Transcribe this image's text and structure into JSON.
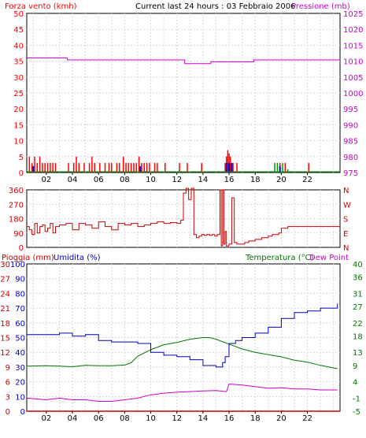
{
  "header": {
    "wind_label": "Forza vento (kmh)",
    "title": "Current last 24 hours : 03 Febbraio 2006",
    "pressure_label": "Pressione (mb)"
  },
  "colors": {
    "wind": "#ff0000",
    "pressure": "#cc00cc",
    "gust": "#0000cc",
    "calm": "#009900",
    "direction": "#cc0000",
    "rain": "#cc0000",
    "humidity": "#0000bb",
    "temperature": "#007700",
    "dewpoint": "#cc00cc"
  },
  "chart_data": [
    {
      "type": "line",
      "name": "wind-pressure",
      "x_ticks": [
        "02",
        "04",
        "06",
        "08",
        "10",
        "12",
        "14",
        "16",
        "18",
        "20",
        "22"
      ],
      "left_axis": {
        "label": "Forza vento (kmh)",
        "ticks": [
          0,
          5,
          10,
          15,
          20,
          25,
          30,
          35,
          40,
          45,
          50
        ],
        "range": [
          0,
          50
        ]
      },
      "right_axis": {
        "label": "Pressione (mb)",
        "ticks": [
          975,
          980,
          985,
          990,
          995,
          1000,
          1005,
          1010,
          1015,
          1020,
          1025
        ],
        "range": [
          975,
          1025
        ]
      },
      "xlim": [
        0.5,
        24.5
      ],
      "grid": true,
      "pressure": {
        "x": [
          0.5,
          3.5,
          3.6,
          12.5,
          12.6,
          14.5,
          14.6,
          17.8,
          17.9,
          24.5
        ],
        "y": [
          1011,
          1011,
          1010.4,
          1010.4,
          1009.2,
          1009.2,
          1009.8,
          1009.8,
          1010.4,
          1010.4
        ]
      },
      "wind_bars": [
        [
          0.7,
          5
        ],
        [
          0.9,
          3
        ],
        [
          1.1,
          5
        ],
        [
          1.3,
          3
        ],
        [
          1.5,
          5
        ],
        [
          1.7,
          3
        ],
        [
          1.9,
          3
        ],
        [
          2.1,
          3
        ],
        [
          2.3,
          3
        ],
        [
          2.5,
          3
        ],
        [
          2.7,
          3
        ],
        [
          3.7,
          3
        ],
        [
          4.1,
          3
        ],
        [
          4.3,
          5
        ],
        [
          4.5,
          3
        ],
        [
          4.9,
          3
        ],
        [
          5.3,
          3
        ],
        [
          5.5,
          5
        ],
        [
          5.7,
          3
        ],
        [
          6.1,
          3
        ],
        [
          6.5,
          3
        ],
        [
          6.8,
          3
        ],
        [
          7.0,
          3
        ],
        [
          7.4,
          3
        ],
        [
          7.6,
          3
        ],
        [
          7.9,
          5
        ],
        [
          8.1,
          3
        ],
        [
          8.3,
          3
        ],
        [
          8.5,
          3
        ],
        [
          8.7,
          3
        ],
        [
          8.9,
          3
        ],
        [
          9.1,
          5
        ],
        [
          9.3,
          3
        ],
        [
          9.5,
          3
        ],
        [
          9.7,
          3
        ],
        [
          9.9,
          3
        ],
        [
          10.3,
          3
        ],
        [
          10.5,
          3
        ],
        [
          11.1,
          3
        ],
        [
          12.2,
          3
        ],
        [
          12.8,
          3
        ],
        [
          13.9,
          3
        ],
        [
          15.7,
          3
        ],
        [
          15.8,
          5
        ],
        [
          15.9,
          7
        ],
        [
          16.0,
          6
        ],
        [
          16.1,
          5
        ],
        [
          16.2,
          3
        ],
        [
          16.3,
          3
        ],
        [
          16.6,
          3
        ],
        [
          19.9,
          3
        ],
        [
          20.3,
          3
        ],
        [
          22.1,
          3
        ]
      ],
      "gust_marks": [
        [
          1.0,
          2
        ],
        [
          9.2,
          2
        ],
        [
          15.8,
          3
        ],
        [
          16.0,
          3
        ],
        [
          16.2,
          3
        ],
        [
          19.9,
          2
        ]
      ],
      "calm_marks": [
        [
          19.5,
          3
        ],
        [
          19.7,
          3
        ],
        [
          20.1,
          3
        ],
        [
          20.5,
          1
        ]
      ]
    },
    {
      "type": "line",
      "name": "wind-direction",
      "left_axis": {
        "ticks": [
          0,
          90,
          180,
          270,
          360
        ],
        "range": [
          0,
          360
        ]
      },
      "right_labels": [
        "N",
        "W",
        "S",
        "E",
        "N"
      ],
      "xlim": [
        0.5,
        24.5
      ],
      "grid": true,
      "x": [
        0.5,
        0.7,
        0.9,
        1.1,
        1.3,
        1.5,
        1.7,
        1.9,
        2.1,
        2.3,
        2.5,
        2.7,
        3.0,
        3.5,
        4.0,
        4.5,
        5.0,
        5.5,
        6.0,
        6.5,
        7.0,
        7.5,
        8.0,
        8.5,
        9.0,
        9.5,
        10.0,
        10.5,
        11.0,
        11.5,
        12.0,
        12.3,
        12.5,
        12.7,
        12.9,
        13.1,
        13.3,
        13.5,
        13.7,
        13.9,
        14.1,
        14.3,
        14.5,
        14.7,
        14.9,
        15.1,
        15.3,
        15.4,
        15.5,
        15.6,
        15.7,
        15.8,
        15.9,
        16.0,
        16.2,
        16.4,
        16.6,
        16.8,
        17.0,
        17.2,
        17.5,
        18.0,
        18.5,
        19.0,
        19.3,
        19.5,
        19.8,
        20.0,
        20.5,
        21.0,
        22.0,
        23.0,
        24.5
      ],
      "y": [
        130,
        110,
        80,
        150,
        90,
        130,
        140,
        100,
        120,
        150,
        90,
        130,
        140,
        150,
        110,
        150,
        140,
        120,
        160,
        130,
        110,
        150,
        140,
        150,
        130,
        140,
        150,
        160,
        150,
        155,
        150,
        170,
        340,
        370,
        300,
        370,
        80,
        60,
        70,
        80,
        75,
        80,
        75,
        80,
        70,
        80,
        360,
        10,
        360,
        20,
        100,
        0,
        10,
        20,
        310,
        30,
        20,
        20,
        20,
        30,
        40,
        50,
        60,
        70,
        80,
        80,
        90,
        120,
        130,
        130,
        130,
        130,
        130
      ]
    },
    {
      "type": "line",
      "name": "rain-humidity-temperature",
      "labels": {
        "rain": "Pioggia (mm)",
        "humidity": "Umidita (%)",
        "temperature": "Temperatura (°C)",
        "dewpoint": "Dew Point"
      },
      "rain_axis": {
        "ticks": [
          0,
          3,
          6,
          9,
          12,
          15,
          18,
          21,
          24,
          27,
          30
        ],
        "range": [
          0,
          30
        ]
      },
      "humidity_axis": {
        "ticks": [
          0,
          10,
          20,
          30,
          40,
          50,
          60,
          70,
          80,
          90,
          100
        ],
        "range": [
          0,
          100
        ]
      },
      "temperature_axis": {
        "ticks": [
          -5,
          -1,
          4,
          9,
          13,
          18,
          22,
          27,
          31,
          36,
          40
        ],
        "range": [
          -5,
          40
        ]
      },
      "xlim": [
        0.5,
        24.5
      ],
      "grid": true,
      "humidity": {
        "x": [
          0.5,
          2.0,
          3.0,
          4.0,
          5.0,
          6.0,
          7.0,
          8.0,
          9.0,
          10.0,
          11.0,
          12.0,
          13.0,
          14.0,
          15.0,
          15.5,
          15.7,
          16.0,
          16.5,
          17.0,
          18.0,
          19.0,
          20.0,
          21.0,
          22.0,
          23.0,
          24.3
        ],
        "y": [
          52,
          52,
          53,
          51,
          52,
          48,
          47,
          47,
          46,
          40,
          38,
          37,
          35,
          31,
          30,
          33,
          37,
          46,
          48,
          50,
          53,
          57,
          63,
          67,
          68,
          70,
          73
        ]
      },
      "temperature": {
        "x": [
          0.5,
          2.0,
          3.0,
          4.0,
          5.0,
          6.0,
          7.0,
          8.0,
          8.5,
          9.0,
          10.0,
          11.0,
          12.0,
          13.0,
          14.0,
          14.5,
          15.0,
          16.0,
          17.0,
          18.0,
          19.0,
          20.0,
          21.0,
          22.0,
          23.0,
          24.3
        ],
        "y": [
          8.8,
          8.9,
          8.8,
          8.6,
          9.0,
          8.9,
          8.9,
          9.1,
          9.8,
          11.8,
          13.8,
          15.3,
          16.0,
          17.0,
          17.5,
          17.5,
          17.0,
          15.5,
          14.0,
          13.0,
          12.3,
          11.6,
          10.6,
          10.0,
          9.0,
          8.0
        ]
      },
      "dewpoint": {
        "x": [
          0.5,
          2.0,
          3.0,
          4.0,
          5.0,
          6.0,
          7.0,
          8.0,
          9.0,
          10.0,
          11.0,
          12.0,
          13.0,
          14.0,
          15.0,
          15.8,
          16.0,
          17.0,
          18.0,
          19.0,
          20.0,
          21.0,
          22.0,
          23.0,
          24.3
        ],
        "y": [
          -1.0,
          -1.5,
          -1.0,
          -1.5,
          -1.5,
          -2.0,
          -2.0,
          -1.5,
          -1.0,
          0.0,
          0.5,
          0.8,
          1.0,
          1.2,
          1.3,
          1.0,
          3.3,
          3.0,
          2.5,
          2.0,
          2.2,
          1.8,
          1.8,
          1.5,
          1.5
        ]
      },
      "rain": {
        "x": [
          0.5,
          24.5
        ],
        "y": [
          0,
          0
        ]
      }
    }
  ]
}
